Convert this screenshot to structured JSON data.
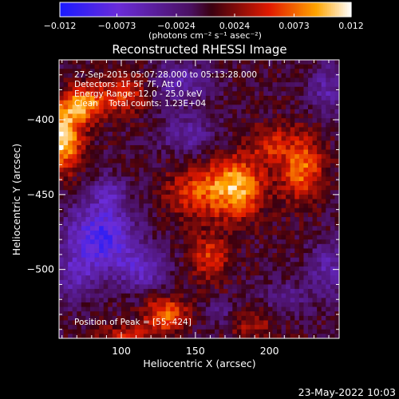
{
  "chart_data": {
    "type": "heatmap",
    "title": "Reconstructed RHESSI Image",
    "xlabel": "Heliocentric X (arcsec)",
    "ylabel": "Heliocentric Y (arcsec)",
    "xlim": [
      58,
      247
    ],
    "ylim": [
      -546,
      -360
    ],
    "x_ticks": [
      100,
      150,
      200
    ],
    "y_ticks": [
      -400,
      -450,
      -500
    ],
    "colorbar": {
      "label": "(photons cm⁻² s⁻¹ asec⁻²)",
      "range": [
        -0.012,
        0.012
      ],
      "ticks": [
        "−0.012",
        "−0.0073",
        "−0.0024",
        "0.0024",
        "0.0073",
        "0.012"
      ],
      "colors": [
        "#1a1aff",
        "#6a2cd8",
        "#4a1060",
        "#3a0010",
        "#e21a00",
        "#ffa400",
        "#ffffff"
      ]
    },
    "annotations": [
      "27-Sep-2015 05:07:28.000 to 05:13:28.000",
      "Detectors: 1F 5F 7F, Att 0",
      "Energy Range: 12.0 - 25.0 keV",
      "Clean    Total counts: 1.23E+04"
    ],
    "peak_label": "Position of Peak = [55,-424]",
    "sources": [
      {
        "x": 60,
        "y": -412,
        "amp": 0.0115,
        "sx": 9,
        "sy": 15
      },
      {
        "x": 75,
        "y": -390,
        "amp": 0.0085,
        "sx": 10,
        "sy": 8
      },
      {
        "x": 102,
        "y": -382,
        "amp": 0.0055,
        "sx": 12,
        "sy": 10
      },
      {
        "x": 178,
        "y": -445,
        "amp": 0.0095,
        "sx": 13,
        "sy": 14
      },
      {
        "x": 150,
        "y": -448,
        "amp": 0.0055,
        "sx": 14,
        "sy": 12
      },
      {
        "x": 160,
        "y": -492,
        "amp": 0.0055,
        "sx": 9,
        "sy": 11
      },
      {
        "x": 222,
        "y": -432,
        "amp": 0.0075,
        "sx": 10,
        "sy": 16
      },
      {
        "x": 200,
        "y": -416,
        "amp": 0.0045,
        "sx": 9,
        "sy": 9
      },
      {
        "x": 130,
        "y": -530,
        "amp": 0.0075,
        "sx": 10,
        "sy": 8
      },
      {
        "x": 104,
        "y": -544,
        "amp": 0.0045,
        "sx": 14,
        "sy": 5
      },
      {
        "x": 188,
        "y": -536,
        "amp": 0.0035,
        "sx": 12,
        "sy": 8
      },
      {
        "x": 86,
        "y": -478,
        "amp": -0.0095,
        "sx": 16,
        "sy": 16
      },
      {
        "x": 114,
        "y": -500,
        "amp": -0.0055,
        "sx": 12,
        "sy": 10
      },
      {
        "x": 68,
        "y": -505,
        "amp": -0.0045,
        "sx": 10,
        "sy": 12
      },
      {
        "x": 140,
        "y": -375,
        "amp": -0.005,
        "sx": 14,
        "sy": 10
      },
      {
        "x": 240,
        "y": -380,
        "amp": -0.0045,
        "sx": 10,
        "sy": 12
      },
      {
        "x": 92,
        "y": -448,
        "amp": -0.004,
        "sx": 8,
        "sy": 8
      },
      {
        "x": 145,
        "y": -410,
        "amp": -0.004,
        "sx": 14,
        "sy": 10
      },
      {
        "x": 240,
        "y": -500,
        "amp": -0.0045,
        "sx": 10,
        "sy": 14
      },
      {
        "x": 210,
        "y": -520,
        "amp": -0.0035,
        "sx": 12,
        "sy": 8
      },
      {
        "x": 168,
        "y": -530,
        "amp": -0.003,
        "sx": 8,
        "sy": 6
      }
    ]
  },
  "footer_date": "23-May-2022 10:03"
}
